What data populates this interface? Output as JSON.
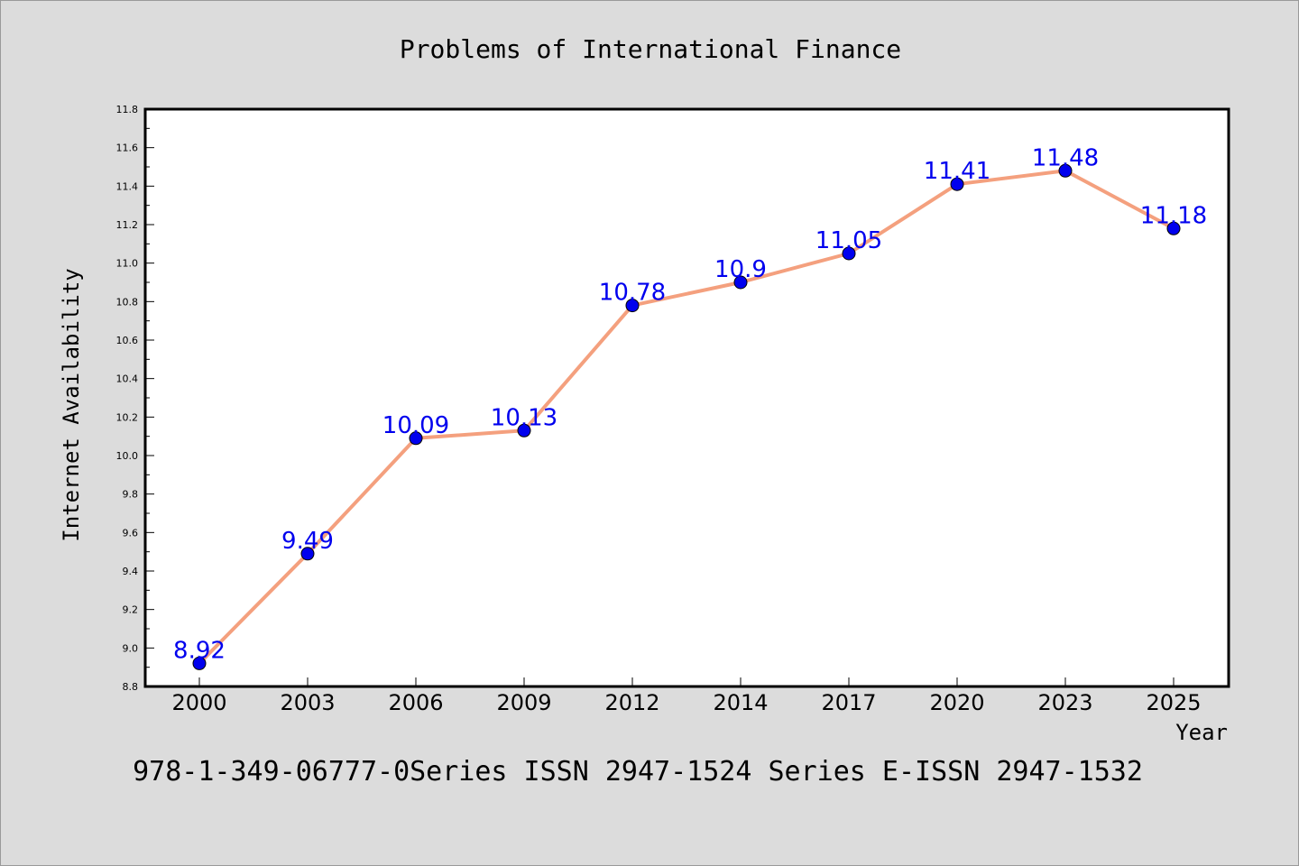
{
  "chart_data": {
    "type": "line",
    "title": "Problems of International Finance",
    "xlabel": "Year",
    "ylabel": "Internet Availability",
    "footer": "978-1-349-06777-0Series ISSN 2947-1524 Series E-ISSN 2947-1532",
    "categories": [
      "2000",
      "2003",
      "2006",
      "2009",
      "2012",
      "2014",
      "2017",
      "2020",
      "2023",
      "2025"
    ],
    "values": [
      8.92,
      9.49,
      10.09,
      10.13,
      10.78,
      10.9,
      11.05,
      11.41,
      11.48,
      11.18
    ],
    "data_labels": [
      "8.92",
      "9.49",
      "10.09",
      "10.13",
      "10.78",
      "10.9",
      "11.05",
      "11.41",
      "11.48",
      "11.18"
    ],
    "yticks": [
      "8.8",
      "9.0",
      "9.2",
      "9.4",
      "9.6",
      "9.8",
      "10.0",
      "10.2",
      "10.4",
      "10.6",
      "10.8",
      "11.0",
      "11.2",
      "11.4",
      "11.6",
      "11.8"
    ],
    "ylim": [
      8.8,
      11.8
    ],
    "grid": false,
    "colors": {
      "line": "#f4a07e",
      "marker": "#0000ee",
      "label": "#0000ee",
      "background": "#dcdcdc",
      "plot_background": "#ffffff"
    }
  }
}
